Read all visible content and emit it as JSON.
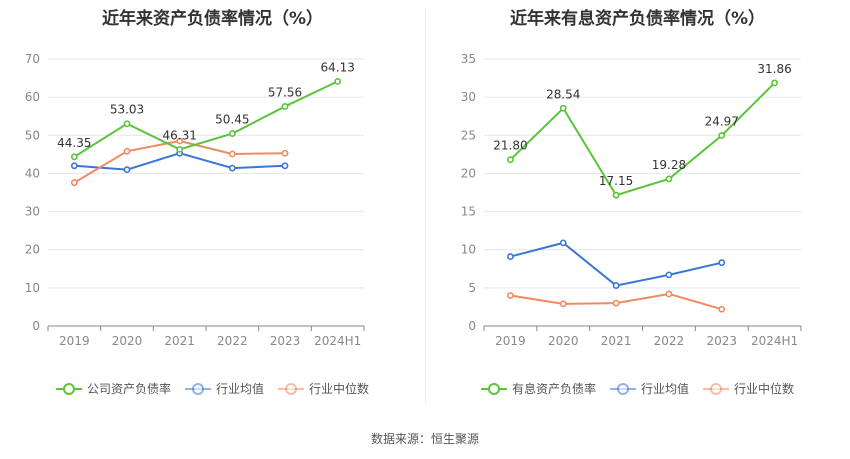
{
  "source_text": "数据来源：恒生聚源",
  "colors": {
    "company": "#5ac43a",
    "industry_avg": "#3a75d8",
    "industry_median": "#f08a61"
  },
  "chart_data": [
    {
      "type": "line",
      "title": "近年来资产负债率情况（%）",
      "categories": [
        "2019",
        "2020",
        "2021",
        "2022",
        "2023",
        "2024H1"
      ],
      "y_ticks": [
        "0",
        "10",
        "20",
        "30",
        "40",
        "50",
        "60",
        "70"
      ],
      "ylim": [
        0,
        70
      ],
      "legend_position": "bottom",
      "series": [
        {
          "name": "公司资产负债率",
          "key": "company",
          "values": [
            44.35,
            53.03,
            46.31,
            50.45,
            57.56,
            64.13
          ],
          "labels": [
            "44.35",
            "53.03",
            "46.31",
            "50.45",
            "57.56",
            "64.13"
          ]
        },
        {
          "name": "行业均值",
          "key": "industry_avg",
          "values": [
            42.0,
            41.0,
            45.3,
            41.4,
            42.0,
            null
          ]
        },
        {
          "name": "行业中位数",
          "key": "industry_median",
          "values": [
            37.6,
            45.8,
            48.5,
            45.1,
            45.3,
            null
          ]
        }
      ]
    },
    {
      "type": "line",
      "title": "近年来有息资产负债率情况（%）",
      "categories": [
        "2019",
        "2020",
        "2021",
        "2022",
        "2023",
        "2024H1"
      ],
      "y_ticks": [
        "0",
        "5",
        "10",
        "15",
        "20",
        "25",
        "30",
        "35"
      ],
      "ylim": [
        0,
        35
      ],
      "legend_position": "bottom",
      "series": [
        {
          "name": "有息资产负债率",
          "key": "company",
          "values": [
            21.8,
            28.54,
            17.15,
            19.28,
            24.97,
            31.86
          ],
          "labels": [
            "21.80",
            "28.54",
            "17.15",
            "19.28",
            "24.97",
            "31.86"
          ]
        },
        {
          "name": "行业均值",
          "key": "industry_avg",
          "values": [
            9.1,
            10.9,
            5.3,
            6.7,
            8.3,
            null
          ]
        },
        {
          "name": "行业中位数",
          "key": "industry_median",
          "values": [
            4.0,
            2.9,
            3.0,
            4.2,
            2.2,
            null
          ]
        }
      ]
    }
  ]
}
